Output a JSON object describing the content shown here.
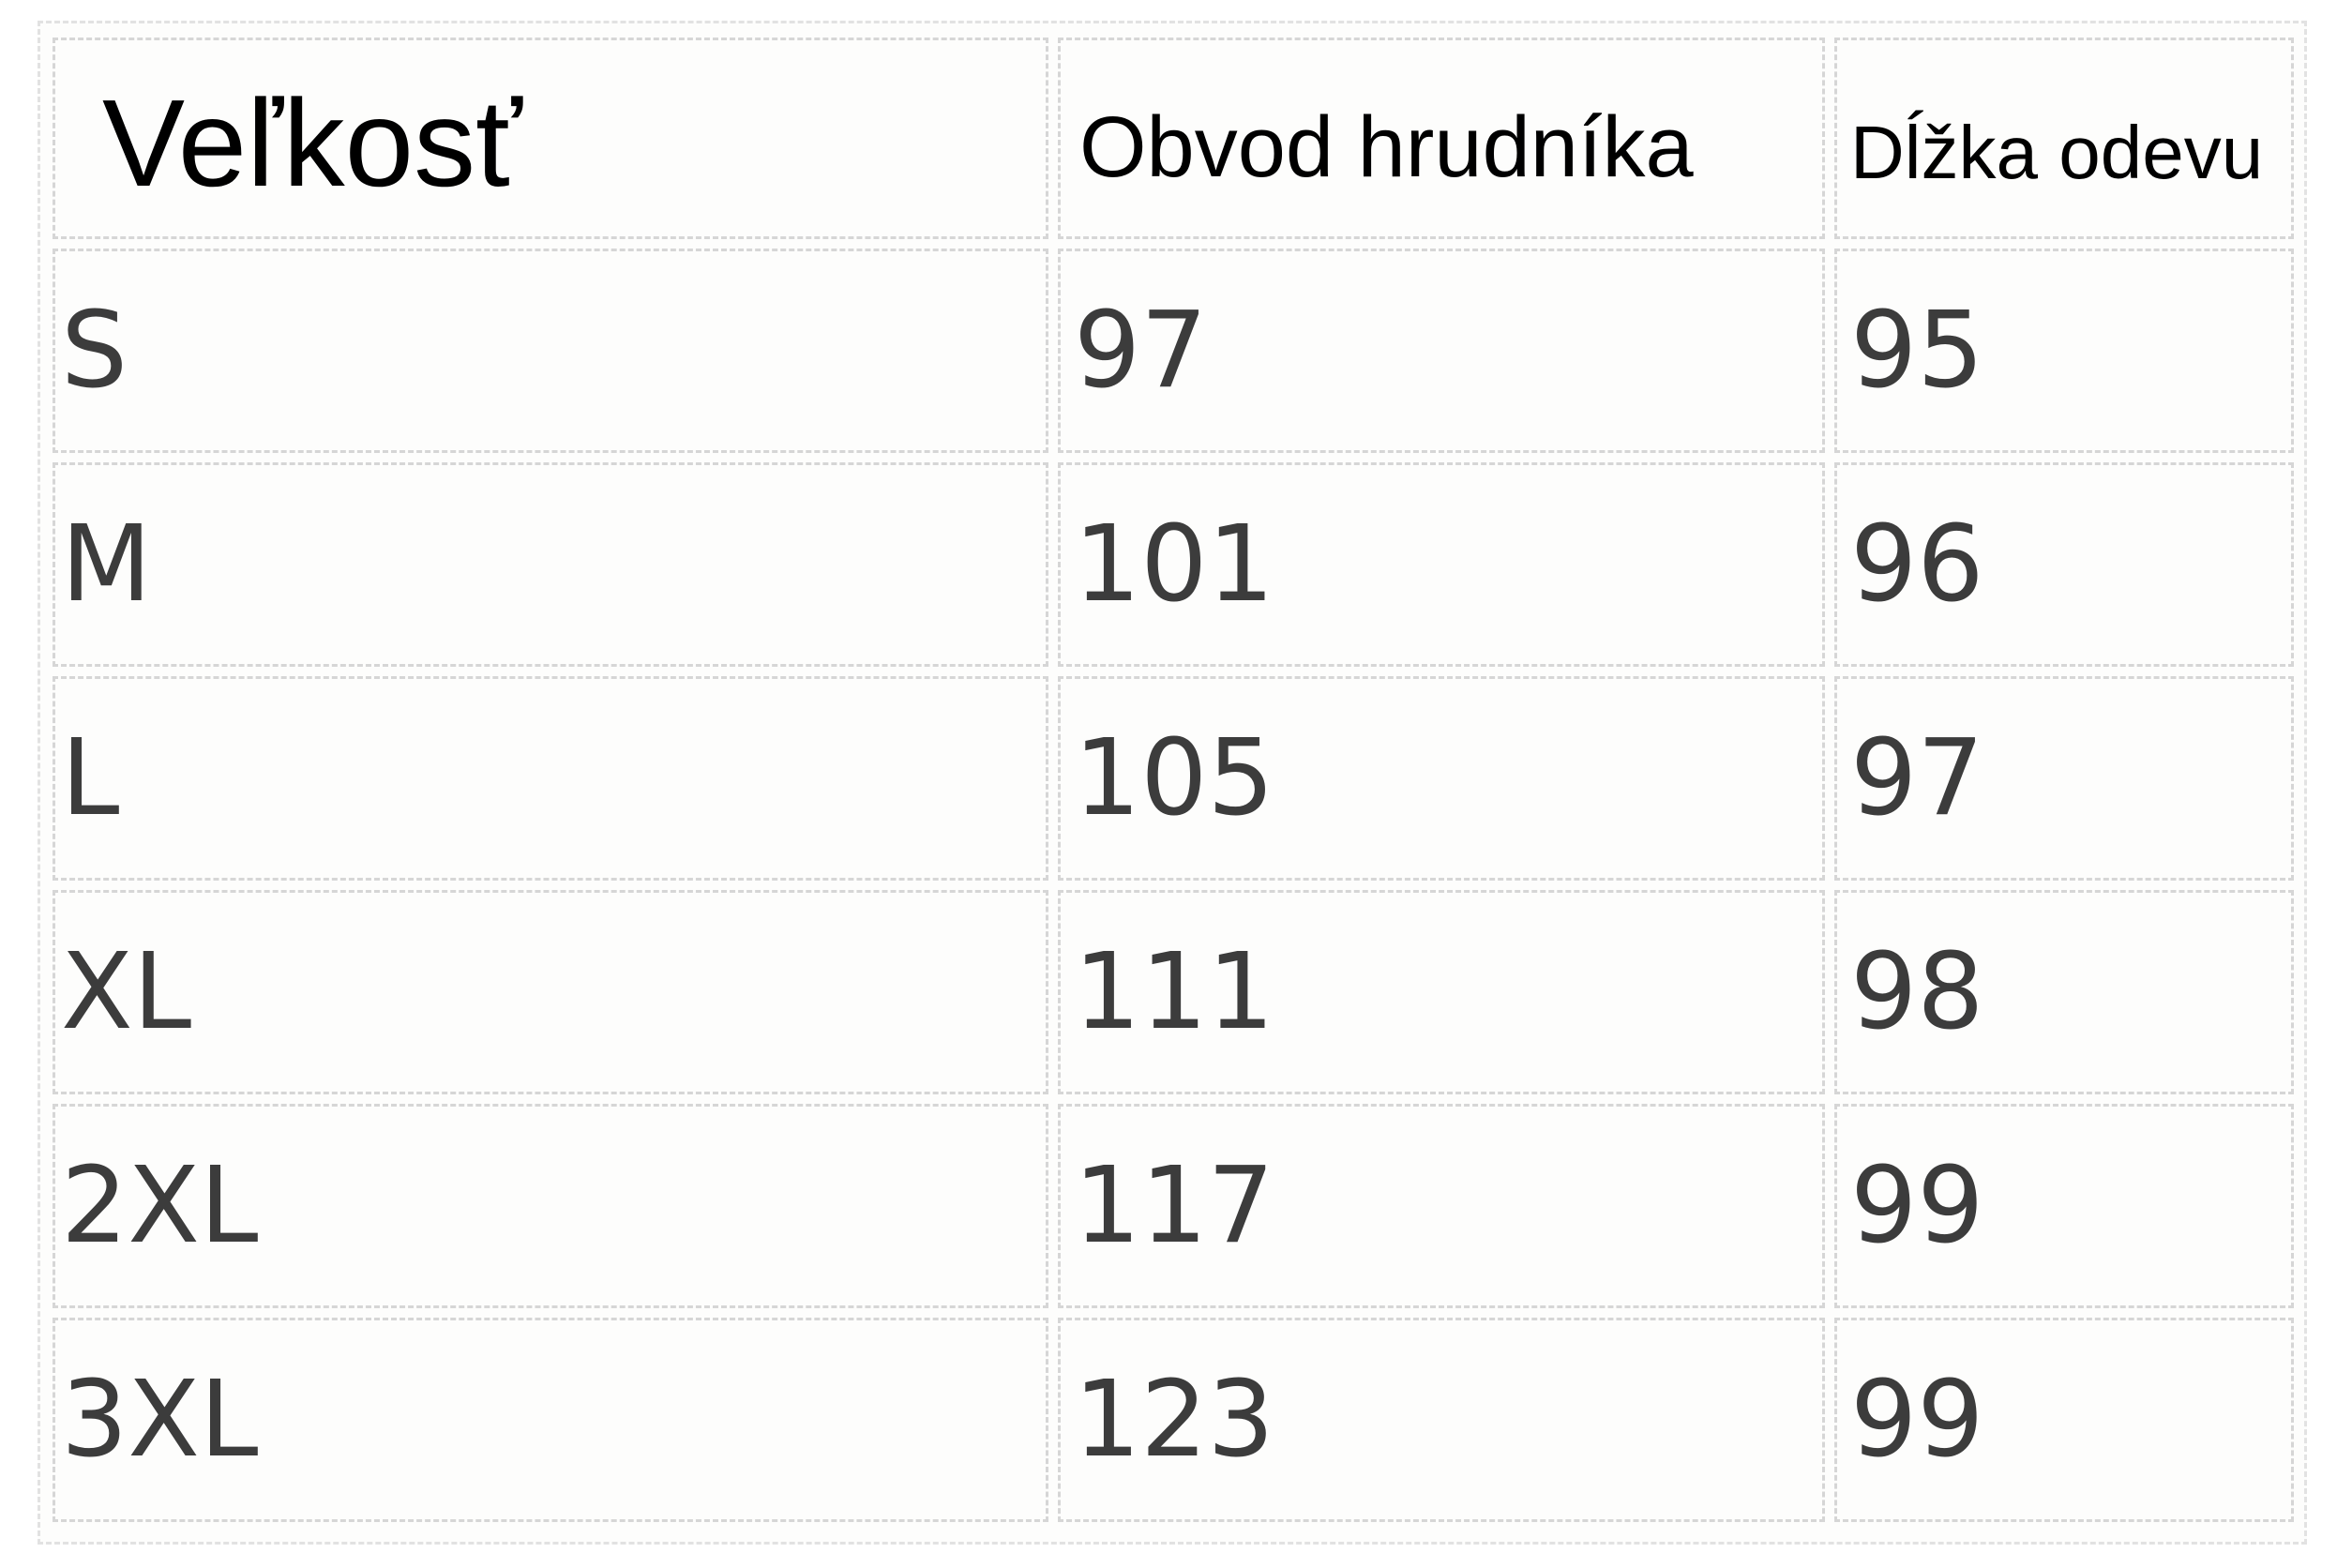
{
  "table": {
    "headers": [
      "Veľkosť",
      "Obvod hrudníka",
      "Dĺžka odevu"
    ],
    "rows": [
      [
        "S",
        "97",
        "95"
      ],
      [
        "M",
        "101",
        "96"
      ],
      [
        "L",
        "105",
        "97"
      ],
      [
        "XL",
        "111",
        "98"
      ],
      [
        "2XL",
        "117",
        "99"
      ],
      [
        "3XL",
        "123",
        "99"
      ]
    ]
  }
}
